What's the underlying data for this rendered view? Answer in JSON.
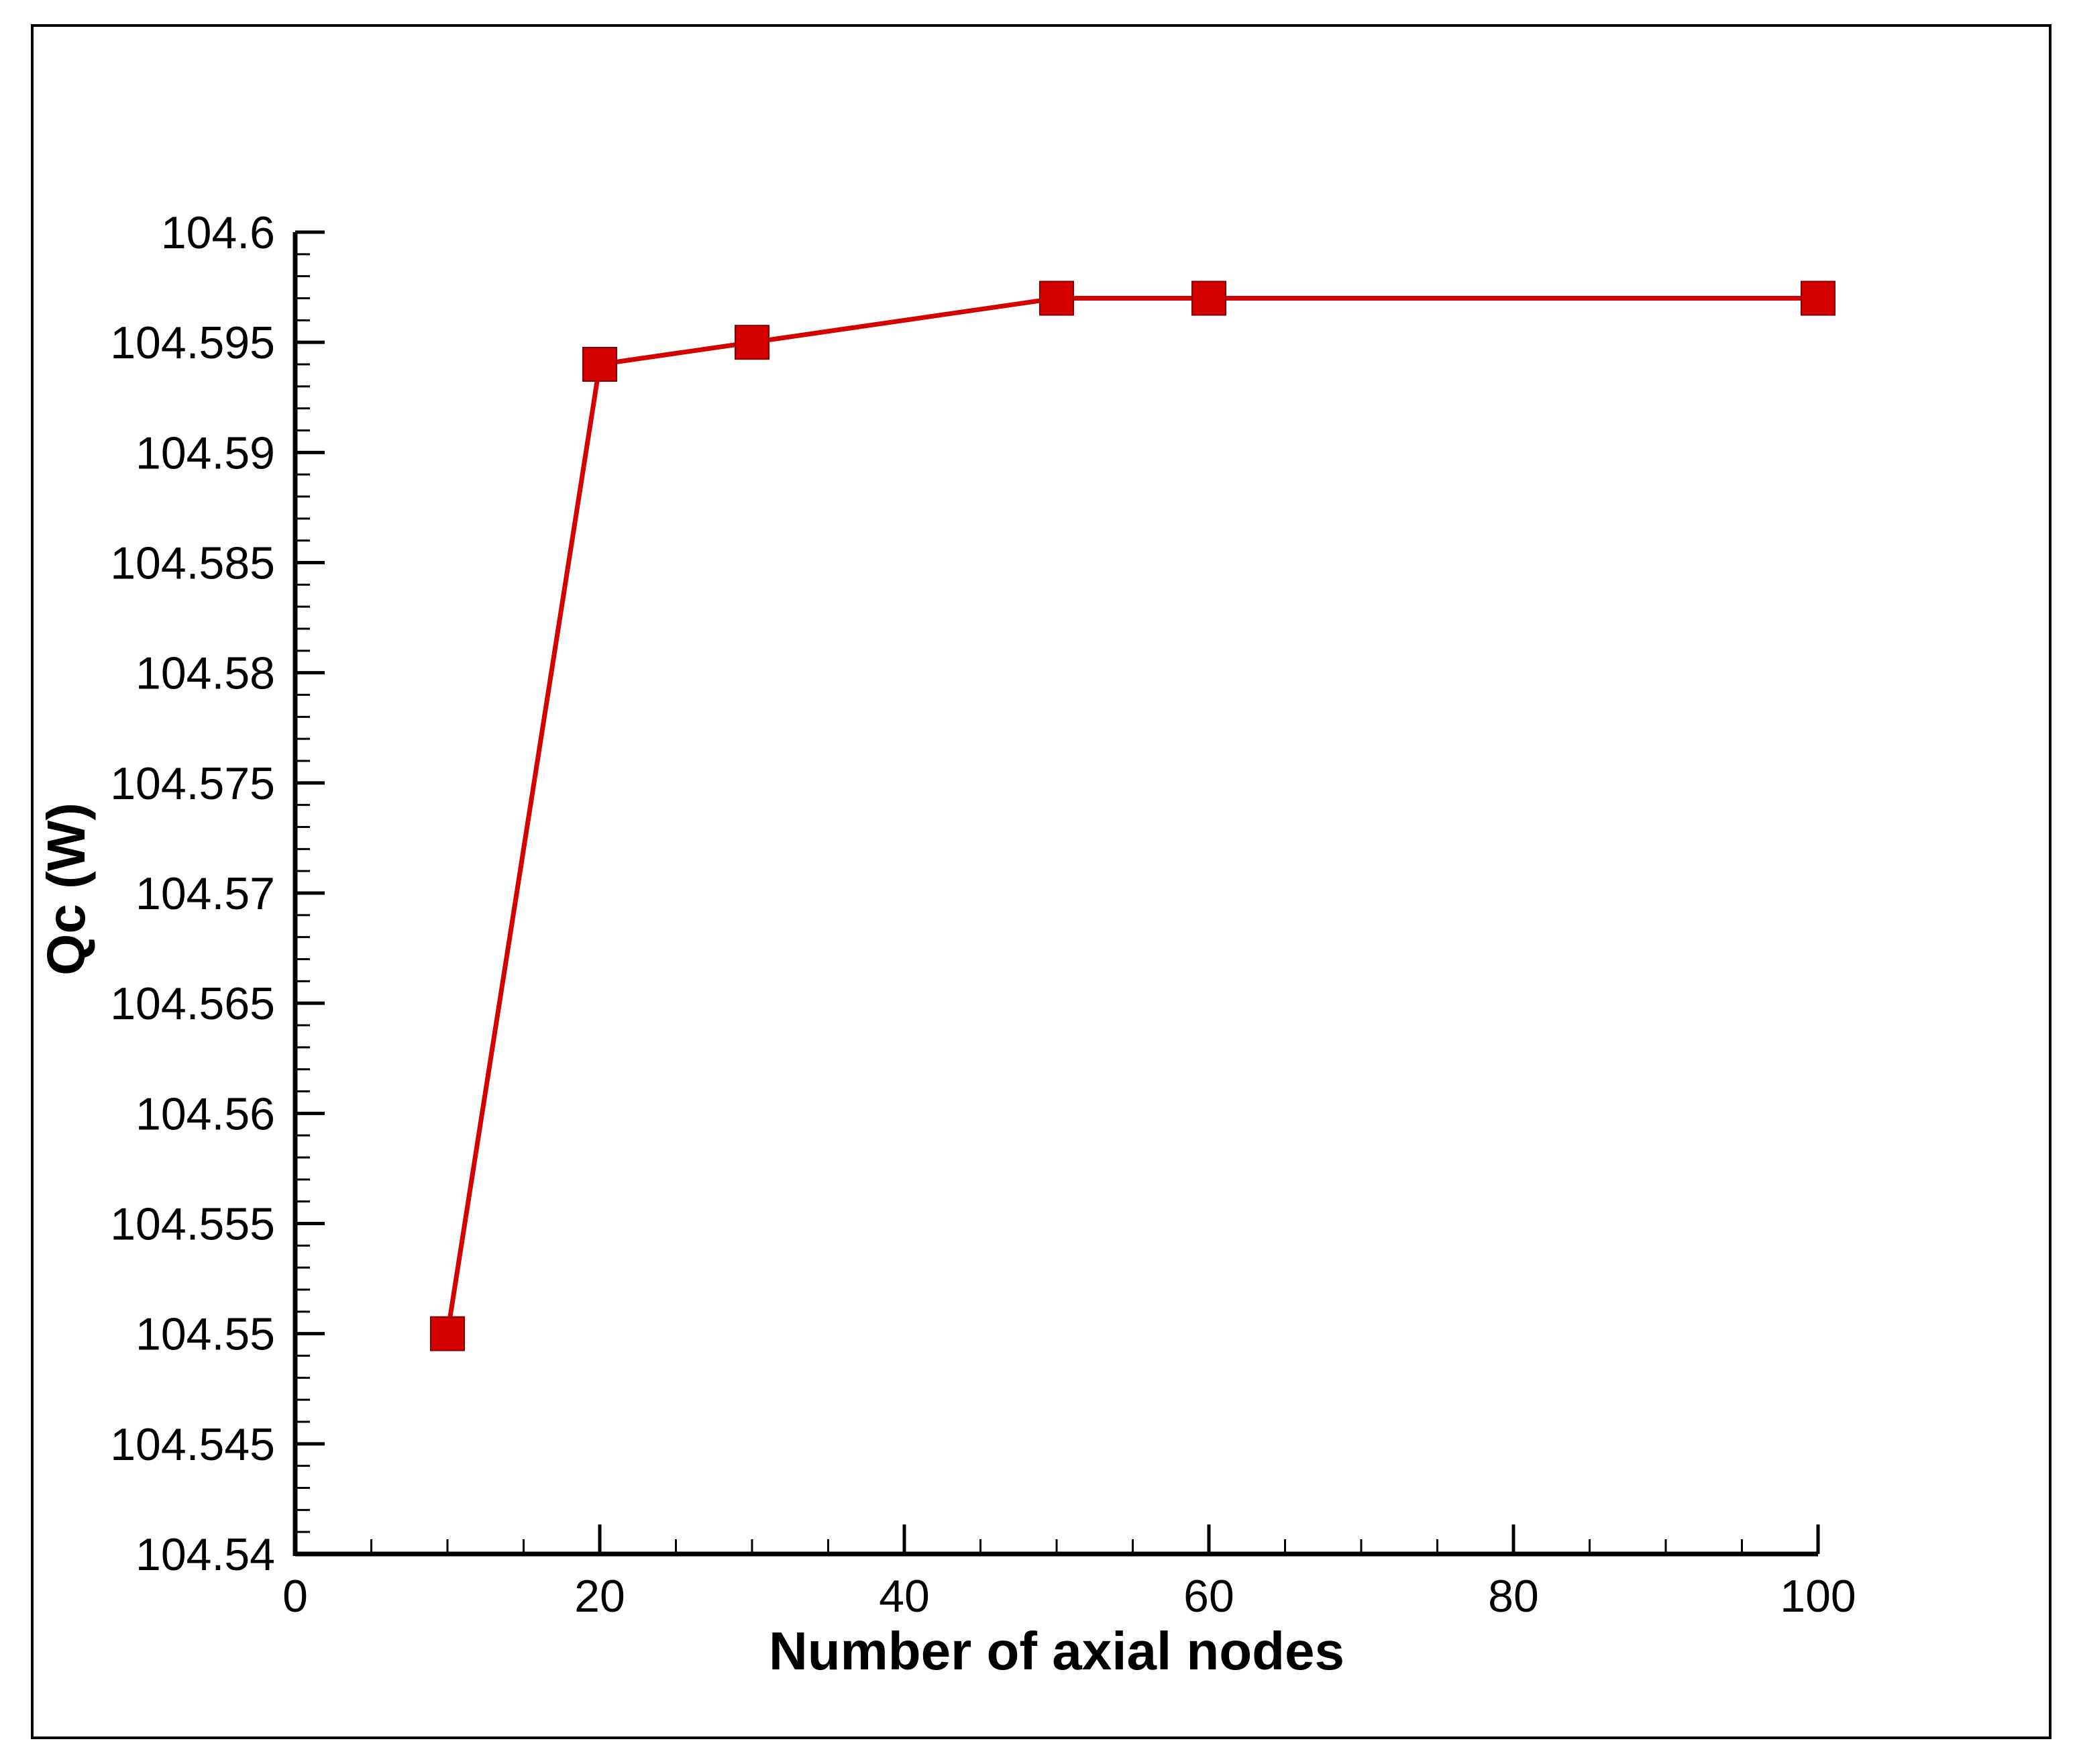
{
  "chart_data": {
    "type": "line",
    "title": "",
    "xlabel": "Number of axial nodes",
    "ylabel": "Qc (W)",
    "x_ticks": [
      {
        "value": 0,
        "label": "0"
      },
      {
        "value": 20,
        "label": "20"
      },
      {
        "value": 40,
        "label": "40"
      },
      {
        "value": 60,
        "label": "60"
      },
      {
        "value": 80,
        "label": "80"
      },
      {
        "value": 100,
        "label": "100"
      }
    ],
    "y_ticks": [
      {
        "value": 104.54,
        "label": "104.54"
      },
      {
        "value": 104.545,
        "label": "104.545"
      },
      {
        "value": 104.55,
        "label": "104.55"
      },
      {
        "value": 104.555,
        "label": "104.555"
      },
      {
        "value": 104.56,
        "label": "104.56"
      },
      {
        "value": 104.565,
        "label": "104.565"
      },
      {
        "value": 104.57,
        "label": "104.57"
      },
      {
        "value": 104.575,
        "label": "104.575"
      },
      {
        "value": 104.58,
        "label": "104.58"
      },
      {
        "value": 104.585,
        "label": "104.585"
      },
      {
        "value": 104.59,
        "label": "104.59"
      },
      {
        "value": 104.595,
        "label": "104.595"
      },
      {
        "value": 104.6,
        "label": "104.6"
      }
    ],
    "xlim": [
      0,
      100
    ],
    "ylim": [
      104.54,
      104.6
    ],
    "x_minor_step": 5,
    "y_minor_step": 0.001,
    "grid": false,
    "series": [
      {
        "color": "#d40000",
        "marker": "square",
        "x": [
          10,
          20,
          30,
          50,
          60,
          100
        ],
        "y": [
          104.55,
          104.594,
          104.595,
          104.597,
          104.597,
          104.597
        ]
      }
    ]
  }
}
